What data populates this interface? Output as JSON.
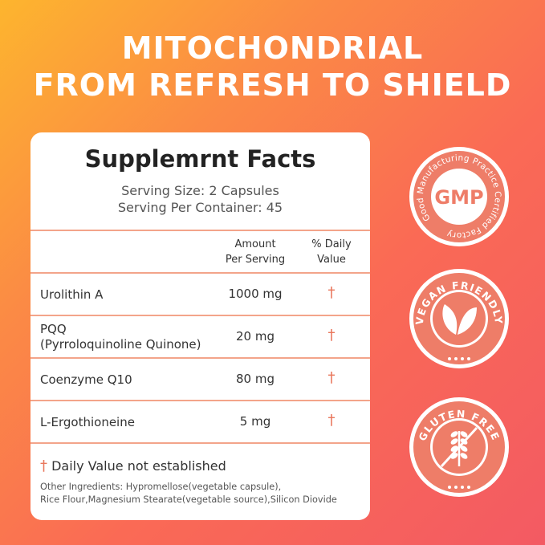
{
  "header": {
    "title_lines": [
      "MITOCHONDRIAL",
      "FROM REFRESH TO SHIELD"
    ]
  },
  "facts": {
    "title": "Supplemrnt Facts",
    "serving_size": "Serving Size: 2 Capsules",
    "servings_per_container": "Serving Per Container: 45",
    "columns": {
      "amount": [
        "Amount",
        "Per Serving"
      ],
      "daily_value": [
        "% Daily",
        "Value"
      ]
    },
    "rows": [
      {
        "name": [
          "Urolithin A"
        ],
        "amount": "1000 mg",
        "daily_value": "†"
      },
      {
        "name": [
          "PQQ",
          "(Pyrroloquinoline Quinone)"
        ],
        "amount": "20 mg",
        "daily_value": "†"
      },
      {
        "name": [
          "Coenzyme Q10"
        ],
        "amount": "80 mg",
        "daily_value": "†"
      },
      {
        "name": [
          "L-Ergothioneine"
        ],
        "amount": "5 mg",
        "daily_value": "†"
      }
    ],
    "footnote": {
      "symbol": "†",
      "text": "Daily Value not established"
    },
    "other_ingredients": [
      "Other Ingredients: Hypromellose(vegetable capsule),",
      "Rice Flour,Magnesium Stearate(vegetable source),Silicon Diovide"
    ]
  },
  "badges": [
    {
      "ring_text": "Good Manufacturing Practice Certified Factory",
      "label": "GMP"
    },
    {
      "ring_text": "VEGAN FRIENDLY"
    },
    {
      "ring_text": "GLUTEN FREE"
    }
  ]
}
